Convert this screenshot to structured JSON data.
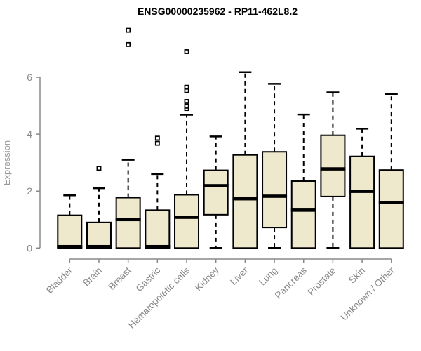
{
  "chart_data": {
    "type": "boxplot",
    "title": "ENSG00000235962 - RP11-462L8.2",
    "xlabel": "",
    "ylabel": "Expression",
    "ylim": [
      0,
      8
    ],
    "yticks": [
      0,
      2,
      4,
      6
    ],
    "x_label_rotation": 45,
    "grid": false,
    "legend": false,
    "colors": {
      "box_fill": "#EEE8CD",
      "box_border": "#000000",
      "median": "#000000",
      "whisker": "#000000",
      "axis": "#888888",
      "background": "#FFFFFF"
    },
    "categories": [
      "Bladder",
      "Brain",
      "Breast",
      "Gastric",
      "Hematopoietic cells",
      "Kidney",
      "Liver",
      "Lung",
      "Pancreas",
      "Prostate",
      "Skin",
      "Unknown / Other"
    ],
    "series": [
      {
        "category": "Bladder",
        "whisker_low": 0,
        "q1": 0,
        "median": 0.05,
        "q3": 1.15,
        "whisker_high": 1.85,
        "outliers": []
      },
      {
        "category": "Brain",
        "whisker_low": 0,
        "q1": 0,
        "median": 0.05,
        "q3": 0.9,
        "whisker_high": 2.1,
        "outliers": [
          2.8
        ]
      },
      {
        "category": "Breast",
        "whisker_low": 0,
        "q1": 0,
        "median": 1.0,
        "q3": 1.77,
        "whisker_high": 3.1,
        "outliers": [
          7.15,
          7.65
        ]
      },
      {
        "category": "Gastric",
        "whisker_low": 0,
        "q1": 0,
        "median": 0.05,
        "q3": 1.33,
        "whisker_high": 2.6,
        "outliers": [
          3.68,
          3.86
        ]
      },
      {
        "category": "Hematopoietic cells",
        "whisker_low": 0,
        "q1": 0,
        "median": 1.08,
        "q3": 1.87,
        "whisker_high": 4.68,
        "outliers": [
          4.9,
          4.98,
          5.15,
          5.53,
          5.65,
          6.9
        ]
      },
      {
        "category": "Kidney",
        "whisker_low": 0,
        "q1": 1.17,
        "median": 2.19,
        "q3": 2.73,
        "whisker_high": 3.92,
        "outliers": []
      },
      {
        "category": "Liver",
        "whisker_low": 0,
        "q1": 0,
        "median": 1.73,
        "q3": 3.27,
        "whisker_high": 6.18,
        "outliers": []
      },
      {
        "category": "Lung",
        "whisker_low": 0,
        "q1": 0.72,
        "median": 1.82,
        "q3": 3.38,
        "whisker_high": 5.77,
        "outliers": []
      },
      {
        "category": "Pancreas",
        "whisker_low": 0,
        "q1": 0,
        "median": 1.33,
        "q3": 2.35,
        "whisker_high": 4.69,
        "outliers": []
      },
      {
        "category": "Prostate",
        "whisker_low": 0,
        "q1": 1.81,
        "median": 2.78,
        "q3": 3.96,
        "whisker_high": 5.47,
        "outliers": []
      },
      {
        "category": "Skin",
        "whisker_low": 0,
        "q1": 0,
        "median": 1.99,
        "q3": 3.22,
        "whisker_high": 4.19,
        "outliers": []
      },
      {
        "category": "Unknown / Other",
        "whisker_low": 0,
        "q1": 0,
        "median": 1.6,
        "q3": 2.74,
        "whisker_high": 5.41,
        "outliers": []
      }
    ]
  }
}
